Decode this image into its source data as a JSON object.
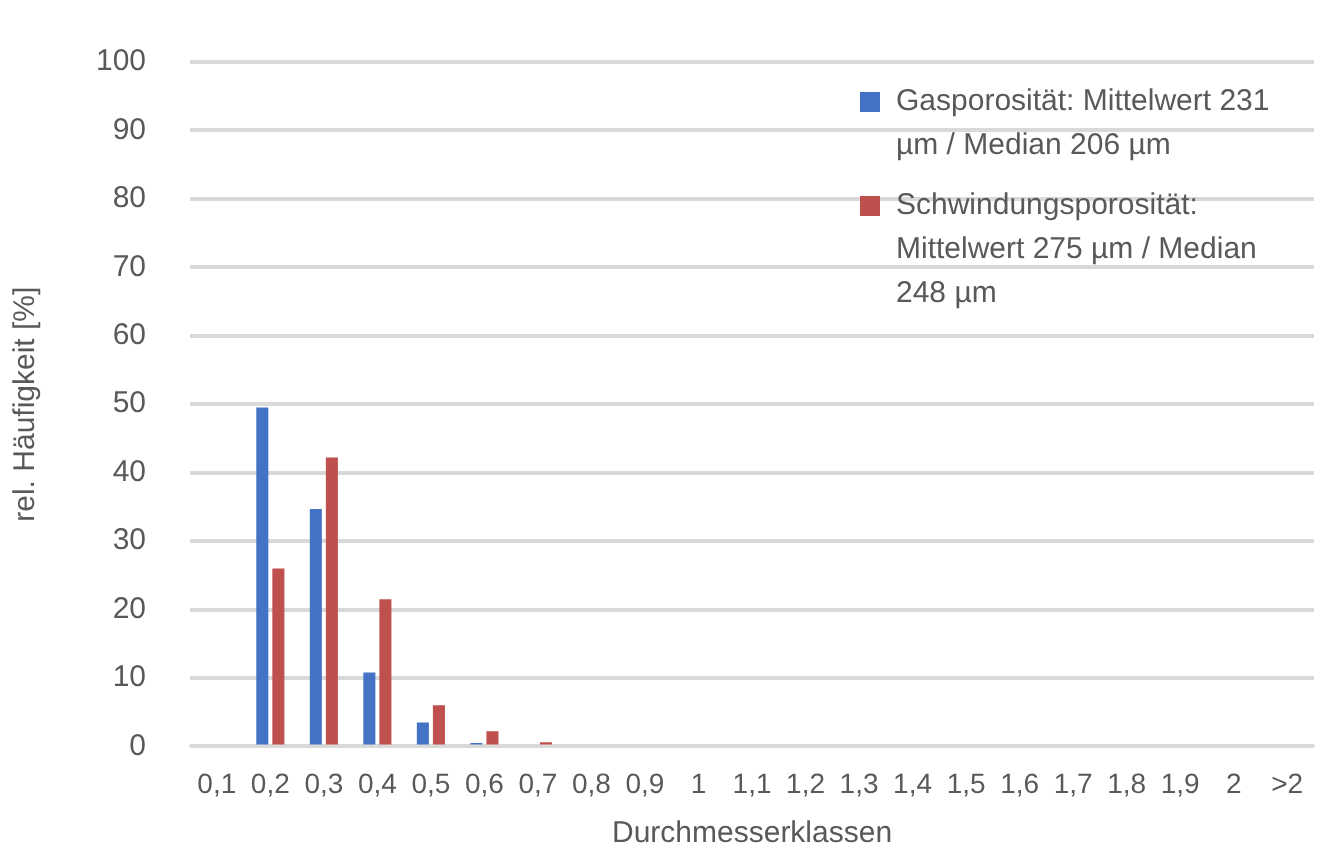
{
  "chart_data": {
    "type": "bar",
    "xlabel": "Durchmesserklassen",
    "ylabel": "rel. Häufigkeit [%]",
    "categories": [
      "0,1",
      "0,2",
      "0,3",
      "0,4",
      "0,5",
      "0,6",
      "0,7",
      "0,8",
      "0,9",
      "1",
      "1,1",
      "1,2",
      "1,3",
      "1,4",
      "1,5",
      "1,6",
      "1,7",
      "1,8",
      "1,9",
      "2",
      ">2"
    ],
    "series": [
      {
        "name": "Gasporosität: Mittelwert 231 µm / Median 206 µm",
        "color": "#4472c4",
        "values": [
          0,
          49.5,
          34.7,
          10.8,
          3.5,
          0.5,
          0,
          0,
          0,
          0,
          0,
          0,
          0,
          0,
          0,
          0,
          0,
          0,
          0,
          0,
          0
        ]
      },
      {
        "name": "Schwindungsporosität: Mittelwert 275 µm / Median 248 µm",
        "color": "#c0504d",
        "values": [
          0,
          26,
          42.2,
          21.5,
          6,
          2.2,
          0.6,
          0,
          0,
          0,
          0,
          0,
          0,
          0,
          0,
          0,
          0,
          0,
          0,
          0,
          0
        ]
      }
    ],
    "ylim": [
      0,
      100
    ],
    "yticks": [
      0,
      10,
      20,
      30,
      40,
      50,
      60,
      70,
      80,
      90,
      100
    ],
    "grid": "y",
    "legend": "top right"
  }
}
